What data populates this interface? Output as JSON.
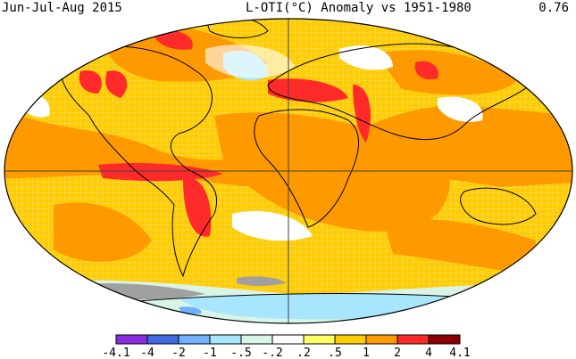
{
  "header": {
    "period": "Jun-Jul-Aug 2015",
    "title": "L-OTI(°C) Anomaly vs 1951-1980",
    "global_mean": "0.76"
  },
  "legend": {
    "bins": [
      {
        "label": "-4.1",
        "color": "#8a2be2"
      },
      {
        "label": "-4",
        "color": "#4169e1"
      },
      {
        "label": "-2",
        "color": "#6fb1ff"
      },
      {
        "label": "-1",
        "color": "#a8e6ff"
      },
      {
        "label": "-.5",
        "color": "#d9f5e8"
      },
      {
        "label": "-.2",
        "color": "#ffffff"
      },
      {
        "label": ".2",
        "color": "#ffff66"
      },
      {
        "label": ".5",
        "color": "#ffcc00"
      },
      {
        "label": "1",
        "color": "#ff9900"
      },
      {
        "label": "2",
        "color": "#ff2b2b"
      },
      {
        "label": "4",
        "color": "#8b0000"
      }
    ],
    "last_label": "4.1"
  },
  "colors": {
    "no_data": "#a0a0a0",
    "ocean_warm": "#ff9900",
    "ocean_mild": "#ffcc00"
  }
}
